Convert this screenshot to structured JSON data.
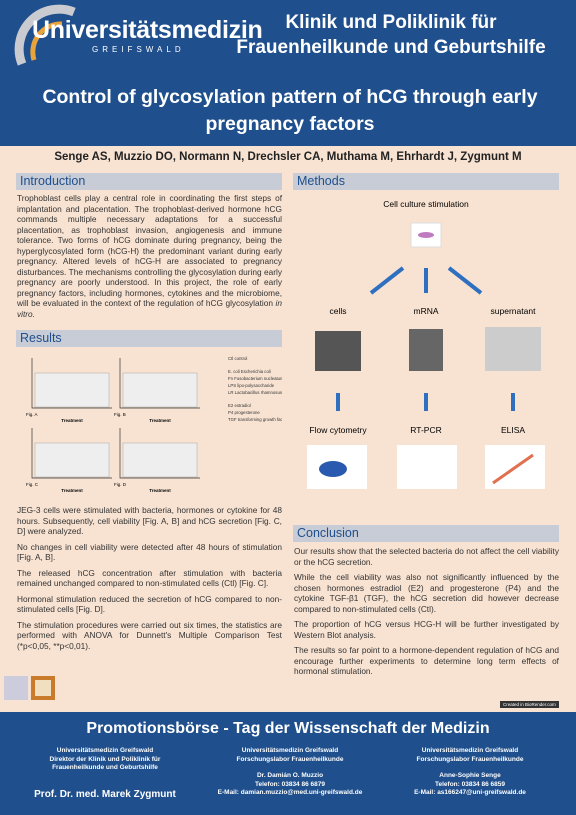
{
  "header": {
    "logo_name": "Universitätsmedizin",
    "logo_sub": "GREIFSWALD",
    "clinic": "Klinik und Poliklinik für Frauenheilkunde und Geburtshilfe",
    "title": "Control of glycosylation pattern of hCG through early pregnancy factors"
  },
  "authors": "Senge AS, Muzzio DO, Normann N, Drechsler CA, Muthama M, Ehrhardt J, Zygmunt M",
  "introduction": {
    "heading": "Introduction",
    "text": "Trophoblast cells play a central role in coordinating the first steps of implantation and placentation. The trophoblast-derived hormone hCG commands multiple necessary adaptations for a successful placentation, as trophoblast invasion, angiogenesis and immune tolerance. Two forms of hCG dominate during pregnancy, being the hyperglycosylated form (hCG-H) the predominant variant during early pregnancy. Altered levels of hCG-H are associated to pregnancy disturbances. The mechanisms controlling the glycosylation during early pregnancy are poorly understood. In this project, the role of early pregnancy factors, including hormones, cytokines and the microbiome, will be evaluated in the context of the regulation of hCG glycosylation",
    "italic": "in vitro."
  },
  "results": {
    "heading": "Results",
    "figures": [
      "Fig. A",
      "Fig. B",
      "Fig. C",
      "Fig. D"
    ],
    "axis": "Treatment",
    "legend": [
      "Ctl control",
      "E. coli Escherichia coli",
      "Fn Fusobacterium nucleatum",
      "LPS lipo-polysaccharide",
      "LR Lactobacillus rhamnosus",
      "E2 estradiol",
      "P4 progesterone",
      "TGF transforming growth factor β1"
    ],
    "paragraphs": [
      "JEG-3 cells were stimulated with bacteria, hormones or cytokine for 48 hours. Subsequently, cell viability [Fig. A, B] and hCG secretion [Fig. C, D] were analyzed.",
      "No changes in cell viability were detected after 48 hours of stimulation [Fig. A, B].",
      "The released hCG concentration after stimulation with bacteria remained unchanged compared to non-stimulated cells (Ctl) [Fig. C].",
      "Hormonal stimulation reduced the secretion of hCG compared to non-stimulated cells [Fig. D].",
      "The stimulation procedures were carried out six times, the statistics are performed with ANOVA for Dunnett's Multiple Comparison Test (*p<0,05, **p<0,01)."
    ]
  },
  "methods": {
    "heading": "Methods",
    "stimulation": "Cell culture stimulation",
    "branches": [
      "cells",
      "mRNA",
      "supernatant"
    ],
    "assays": [
      "Flow cytometry",
      "RT-PCR",
      "ELISA"
    ]
  },
  "conclusion": {
    "heading": "Conclusion",
    "paragraphs": [
      "Our results show that the selected bacteria do not affect the cell viability or the hCG secretion.",
      "While the cell viability was also not significantly influenced by the chosen hormones estradiol (E2) and progesterone (P4) and the cytokine TGF-β1 (TGF), the hCG secretion did however decrease compared to non-stimulated cells (Ctl).",
      "The proportion of hCG versus HCG-H will be further investigated by Western Blot analysis.",
      "The results so far point to a hormone-dependent regulation of hCG and encourage further experiments to determine long term effects of hormonal stimulation."
    ]
  },
  "badge": "Created in BioRender.com",
  "footer": {
    "title": "Promotionsbörse - Tag der Wissenschaft der Medizin",
    "col1": [
      "Universitätsmedizin Greifswald",
      "Direktor der Klinik und Poliklinik für",
      "Frauenheilkunde und Geburtshilfe"
    ],
    "prof": "Prof. Dr. med. Marek Zygmunt",
    "col2": [
      "Universitätsmedizin Greifswald",
      "Forschungslabor Frauenheilkunde",
      "",
      "Dr. Damián O. Muzzio",
      "Telefon: 03834 86 6879",
      "E-Mail: damian.muzzio@med.uni-greifswald.de"
    ],
    "col3": [
      "Universitätsmedizin Greifswald",
      "Forschungslabor Frauenheilkunde",
      "",
      "Anne-Sophie Senge",
      "Telefon: 03834 86 6859",
      "E-Mail: as166247@uni-greifswald.de"
    ]
  }
}
